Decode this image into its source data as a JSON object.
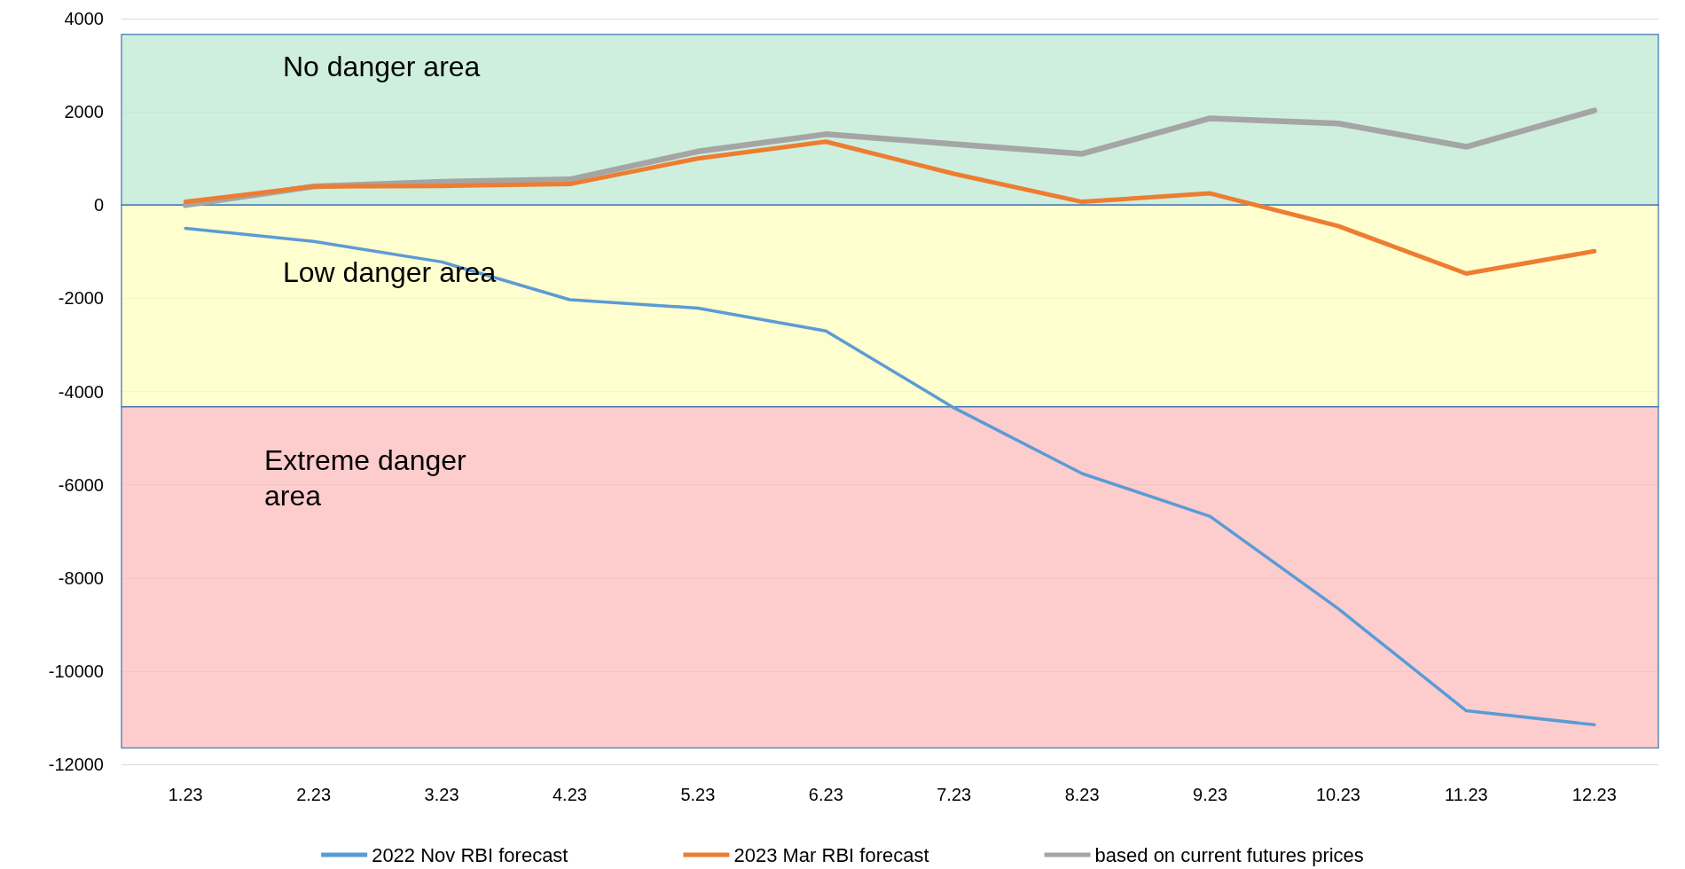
{
  "chart_data": {
    "type": "line",
    "categories": [
      "1.23",
      "2.23",
      "3.23",
      "4.23",
      "5.23",
      "6.23",
      "7.23",
      "8.23",
      "9.23",
      "10.23",
      "11.23",
      "12.23"
    ],
    "series": [
      {
        "name": "2022 Nov RBI forecast",
        "color": "#5b9bd5",
        "values": [
          -500,
          -780,
          -1220,
          -2030,
          -2210,
          -2700,
          -4350,
          -5760,
          -6680,
          -8660,
          -10850,
          -11150
        ]
      },
      {
        "name": "2023 Mar RBI forecast",
        "color": "#ed7d31",
        "values": [
          70,
          400,
          410,
          450,
          1000,
          1360,
          670,
          70,
          250,
          -450,
          -1470,
          -990
        ]
      },
      {
        "name": "based on current futures prices",
        "color": "#a5a5a5",
        "values": [
          0,
          400,
          500,
          550,
          1150,
          1520,
          1310,
          1100,
          1860,
          1750,
          1250,
          2030
        ]
      }
    ],
    "ylim": [
      -12000,
      4000
    ],
    "yticks": [
      -12000,
      -10000,
      -8000,
      -6000,
      -4000,
      -2000,
      0,
      2000,
      4000
    ],
    "bands": [
      {
        "axis": "y",
        "from": 0,
        "to": 3660,
        "label": "No danger area",
        "color": "#c2ebd6"
      },
      {
        "axis": "y",
        "from": -4330,
        "to": 0,
        "label": "Low danger area",
        "color": "#fefec3"
      },
      {
        "axis": "y",
        "from": -11650,
        "to": -4330,
        "label": "Extreme danger\narea",
        "color": "#fcc0c0"
      }
    ],
    "grid": "y",
    "legend": "bottom",
    "marker": "none",
    "line_style": "solid"
  }
}
